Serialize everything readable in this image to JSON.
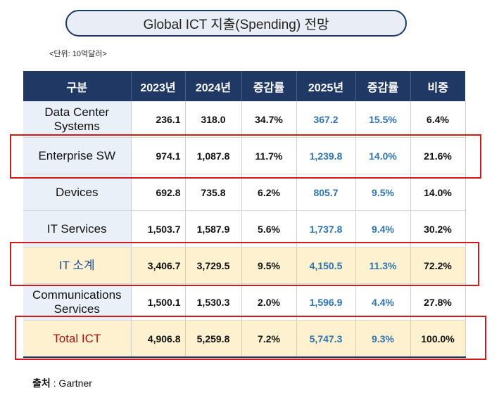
{
  "title": "Global ICT 지출(Spending) 전망",
  "unit": "<단위: 10억달러>",
  "headers": [
    "구분",
    "2023년",
    "2024년",
    "증감률",
    "2025년",
    "증감률",
    "비중"
  ],
  "rows": [
    {
      "label": "Data Center Systems",
      "v2023": "236.1",
      "v2024": "318.0",
      "g2024": "34.7%",
      "v2025": "367.2",
      "g2025": "15.5%",
      "share": "6.4%"
    },
    {
      "label": "Enterprise SW",
      "v2023": "974.1",
      "v2024": "1,087.8",
      "g2024": "11.7%",
      "v2025": "1,239.8",
      "g2025": "14.0%",
      "share": "21.6%"
    },
    {
      "label": "Devices",
      "v2023": "692.8",
      "v2024": "735.8",
      "g2024": "6.2%",
      "v2025": "805.7",
      "g2025": "9.5%",
      "share": "14.0%"
    },
    {
      "label": "IT Services",
      "v2023": "1,503.7",
      "v2024": "1,587.9",
      "g2024": "5.6%",
      "v2025": "1,737.8",
      "g2025": "9.4%",
      "share": "30.2%"
    },
    {
      "label": "IT 소계",
      "v2023": "3,406.7",
      "v2024": "3,729.5",
      "g2024": "9.5%",
      "v2025": "4,150.5",
      "g2025": "11.3%",
      "share": "72.2%"
    },
    {
      "label": "Communications Services",
      "v2023": "1,500.1",
      "v2024": "1,530.3",
      "g2024": "2.0%",
      "v2025": "1,596.9",
      "g2025": "4.4%",
      "share": "27.8%"
    },
    {
      "label": "Total ICT",
      "v2023": "4,906.8",
      "v2024": "5,259.8",
      "g2024": "7.2%",
      "v2025": "5,747.3",
      "g2025": "9.3%",
      "share": "100.0%"
    }
  ],
  "source": {
    "label": "출처",
    "value": " : Gartner"
  },
  "colors": {
    "header_bg": "#203864",
    "highlight_border": "#d01a1a",
    "accent_blue": "#2e74b5",
    "subtotal_bg": "#fdf1d0",
    "total_text": "#b01010"
  }
}
